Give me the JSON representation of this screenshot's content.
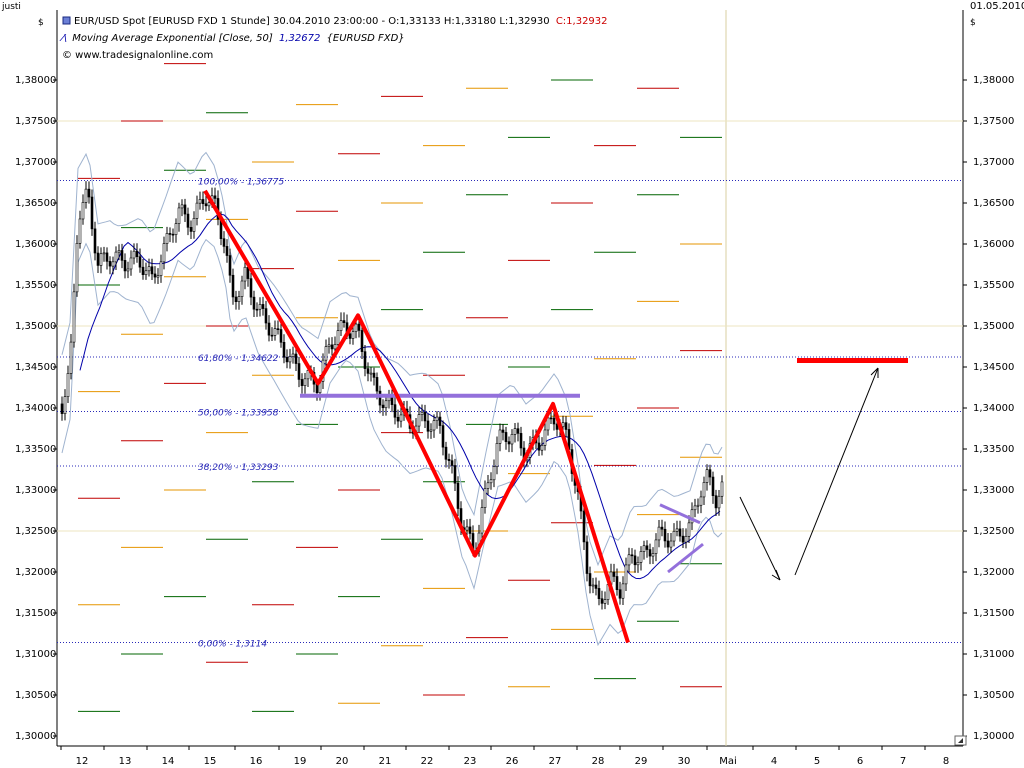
{
  "top_left_text": "justi",
  "top_right_date": "01.05.2010",
  "currency_symbol": "$",
  "header": {
    "title": "EUR/USD Spot [EURUSD FXD  1 Stunde] 30.04.2010 23:00:00 - O:1,33133 H:1,33180 L:1,32930",
    "close_text": "C:1,32932",
    "ma_label": "Moving Average Exponential [Close, 50]",
    "ma_value": "1,32672",
    "ma_suffix": "{EURUSD FXD}",
    "copyright": "© www.tradesignalonline.com"
  },
  "colors": {
    "candle_up": "#ffffff",
    "candle_down": "#000000",
    "zigzag": "#ff0000",
    "neckline": "#9370db",
    "ma": "#0000aa",
    "bollinger": "#9fb3cf",
    "fib": "#2a2ab8",
    "target": "#ff0000",
    "pivot_red": "#c00000",
    "pivot_green": "#006400",
    "pivot_orange": "#e69500"
  },
  "chart_data": {
    "type": "candlestick",
    "y_ticks": [
      "1,38000",
      "1,37500",
      "1,37000",
      "1,36500",
      "1,36000",
      "1,35500",
      "1,35000",
      "1,34500",
      "1,34000",
      "1,33500",
      "1,33000",
      "1,32500",
      "1,32000",
      "1,31500",
      "1,31000",
      "1,30500",
      "1,30000"
    ],
    "ylim": [
      1.3,
      1.383
    ],
    "x_ticks": [
      "12",
      "13",
      "14",
      "15",
      "16",
      "19",
      "20",
      "21",
      "22",
      "23",
      "26",
      "27",
      "28",
      "29",
      "30",
      "Mai",
      "4",
      "5",
      "6",
      "7",
      "8"
    ],
    "fib_levels": [
      {
        "label": "100,00% - 1,36775",
        "value": 1.36775
      },
      {
        "label": "61,80% - 1,34622",
        "value": 1.34622
      },
      {
        "label": "50,00% - 1,33958",
        "value": 1.33958
      },
      {
        "label": "38,20% - 1,33293",
        "value": 1.33293
      },
      {
        "label": "0,00% - 1,3114",
        "value": 1.3114
      }
    ],
    "zigzag": [
      {
        "day": "15",
        "value": 1.3665
      },
      {
        "day": "19",
        "value": 1.343
      },
      {
        "day": "20",
        "value": 1.3513
      },
      {
        "day": "23",
        "value": 1.322
      },
      {
        "day": "27",
        "value": 1.3405
      },
      {
        "day": "28",
        "value": 1.3114
      }
    ],
    "neckline": 1.3415,
    "target_level": 1.3458
  }
}
